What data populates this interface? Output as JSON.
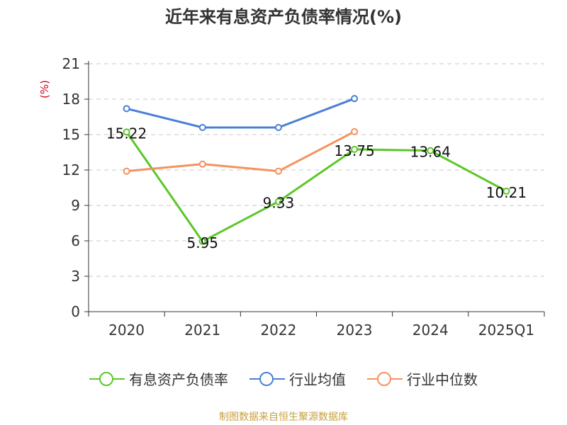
{
  "chart_data": {
    "type": "line",
    "title": "近年来有息资产负债率情况(%)",
    "ylabel": "(%)",
    "xlabel": "",
    "categories": [
      "2020",
      "2021",
      "2022",
      "2023",
      "2024",
      "2025Q1"
    ],
    "ylim": [
      0,
      21
    ],
    "yticks": [
      0,
      3,
      6,
      9,
      12,
      15,
      18,
      21
    ],
    "grid": true,
    "legend_position": "bottom",
    "series": [
      {
        "name": "有息资产负债率",
        "color": "#5cc72a",
        "values": [
          15.22,
          5.95,
          9.33,
          13.75,
          13.64,
          10.21
        ],
        "labels": [
          "15.22",
          "5.95",
          "9.33",
          "13.75",
          "13.64",
          "10.21"
        ]
      },
      {
        "name": "行业均值",
        "color": "#4a7fd6",
        "values": [
          17.2,
          15.6,
          15.6,
          18.05,
          null,
          null
        ]
      },
      {
        "name": "行业中位数",
        "color": "#f5925e",
        "values": [
          11.9,
          12.5,
          11.9,
          15.25,
          null,
          null
        ]
      }
    ]
  },
  "source_note": "制图数据来自恒生聚源数据库"
}
